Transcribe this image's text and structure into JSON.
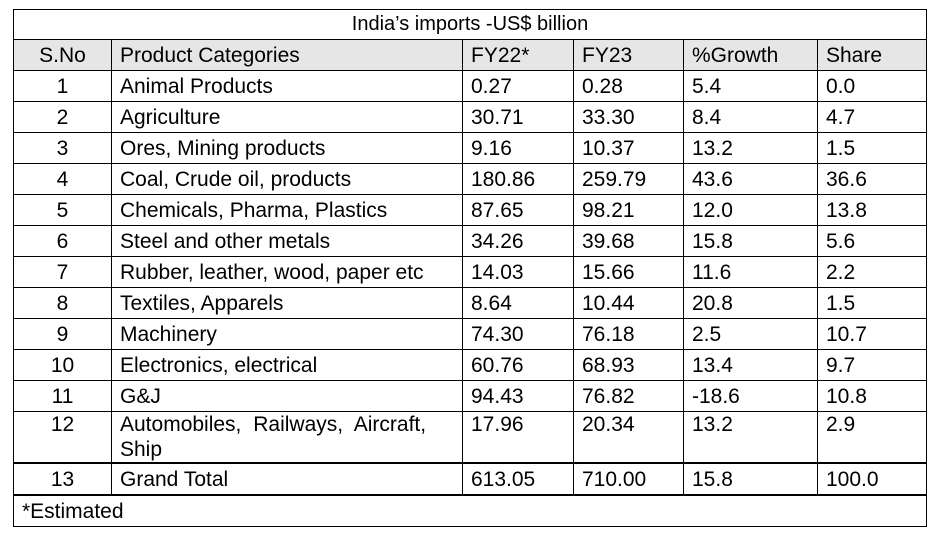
{
  "table": {
    "title": "India’s imports -US$ billion",
    "headers": {
      "sno": "S.No",
      "category": "Product Categories",
      "fy22": "FY22*",
      "fy23": "FY23",
      "growth": "%Growth",
      "share": "Share"
    },
    "rows": [
      {
        "sno": "1",
        "category": "Animal Products",
        "fy22": "0.27",
        "fy23": "0.28",
        "growth": "5.4",
        "share": "0.0"
      },
      {
        "sno": "2",
        "category": "Agriculture",
        "fy22": "30.71",
        "fy23": "33.30",
        "growth": "8.4",
        "share": "4.7"
      },
      {
        "sno": "3",
        "category": "Ores, Mining products",
        "fy22": "9.16",
        "fy23": "10.37",
        "growth": "13.2",
        "share": "1.5"
      },
      {
        "sno": "4",
        "category": "Coal, Crude oil, products",
        "fy22": "180.86",
        "fy23": "259.79",
        "growth": "43.6",
        "share": "36.6"
      },
      {
        "sno": "5",
        "category": "Chemicals, Pharma, Plastics",
        "fy22": "87.65",
        "fy23": "98.21",
        "growth": "12.0",
        "share": "13.8"
      },
      {
        "sno": "6",
        "category": "Steel and other metals",
        "fy22": "34.26",
        "fy23": "39.68",
        "growth": "15.8",
        "share": "5.6"
      },
      {
        "sno": "7",
        "category": "Rubber, leather, wood, paper etc",
        "fy22": "14.03",
        "fy23": "15.66",
        "growth": "11.6",
        "share": "2.2"
      },
      {
        "sno": "8",
        "category": "Textiles, Apparels",
        "fy22": "8.64",
        "fy23": "10.44",
        "growth": "20.8",
        "share": "1.5"
      },
      {
        "sno": "9",
        "category": "Machinery",
        "fy22": "74.30",
        "fy23": "76.18",
        "growth": "2.5",
        "share": "10.7"
      },
      {
        "sno": "10",
        "category": "Electronics, electrical",
        "fy22": "60.76",
        "fy23": "68.93",
        "growth": "13.4",
        "share": "9.7"
      },
      {
        "sno": "11",
        "category": "G&J",
        "fy22": "94.43",
        "fy23": "76.82",
        "growth": "-18.6",
        "share": "10.8"
      },
      {
        "sno": "12",
        "category": "Automobiles, Railways, Aircraft, Ship",
        "fy22": "17.96",
        "fy23": "20.34",
        "growth": "13.2",
        "share": "2.9"
      }
    ],
    "total": {
      "sno": "13",
      "category": "Grand Total",
      "fy22": "613.05",
      "fy23": "710.00",
      "growth": "15.8",
      "share": "100.0"
    },
    "footnote": "*Estimated"
  }
}
